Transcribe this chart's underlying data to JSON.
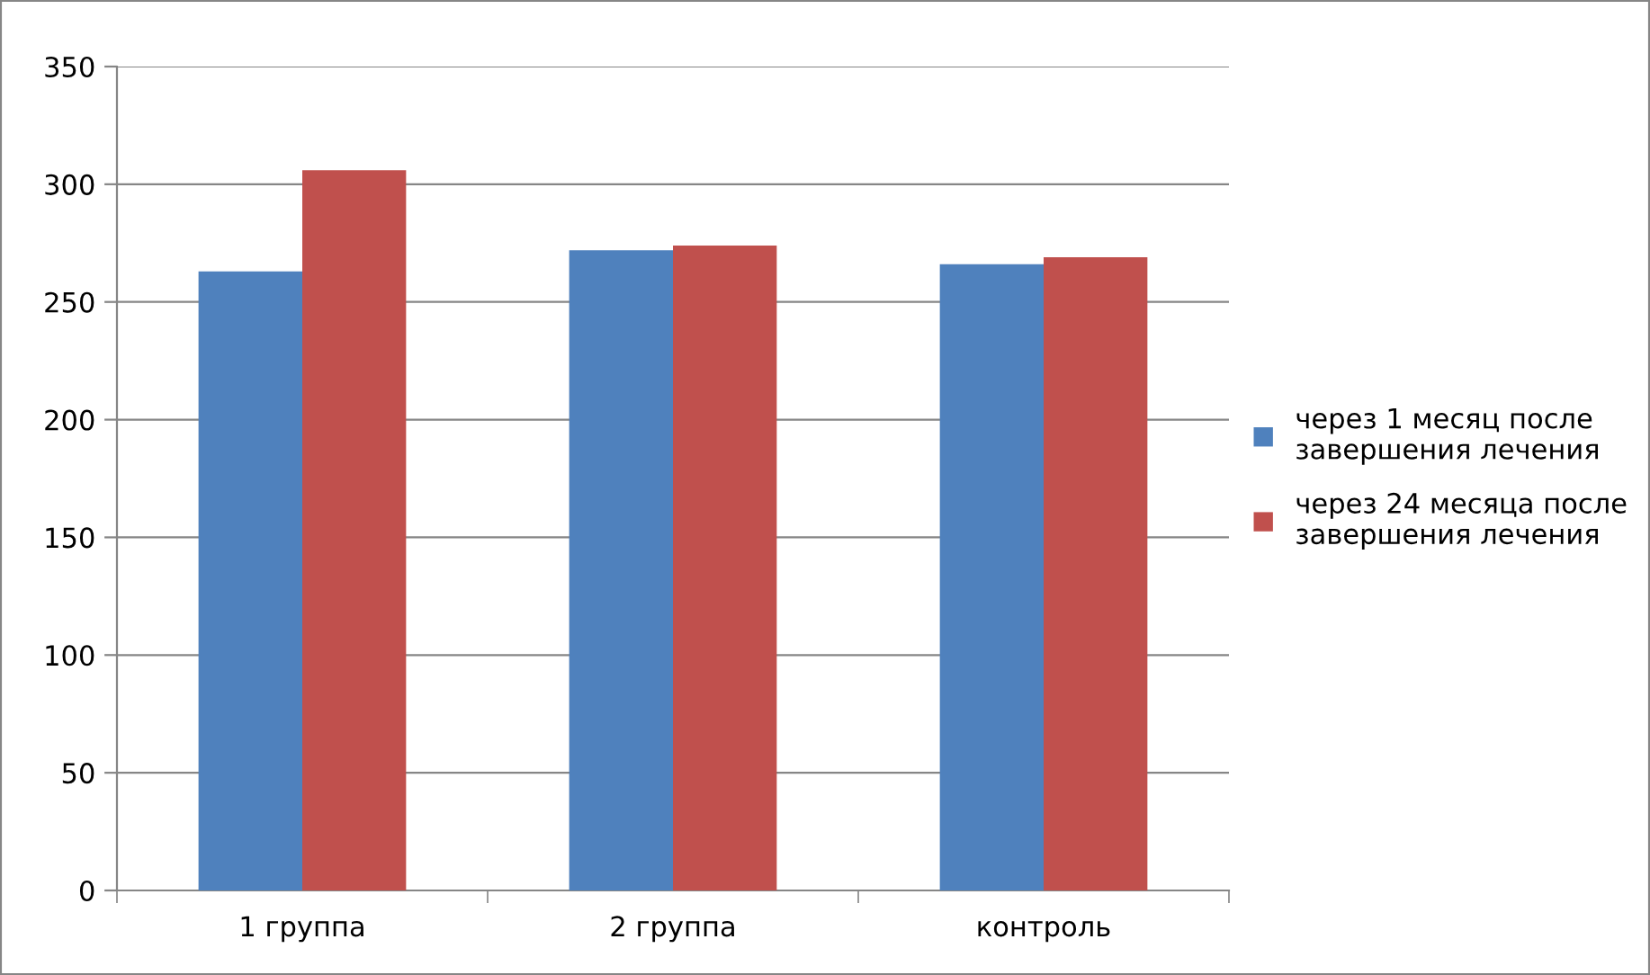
{
  "chart_data": {
    "type": "bar",
    "categories": [
      "1 группа",
      "2 группа",
      "контроль"
    ],
    "series": [
      {
        "name": "через 1 месяц после\nзавершения лечения",
        "color": "#4f81bd",
        "values": [
          263,
          272,
          266
        ]
      },
      {
        "name": "через 24 месяца после\nзавершения лечения",
        "color": "#c0504d",
        "values": [
          306,
          274,
          269
        ]
      }
    ],
    "ylim": [
      0,
      350
    ],
    "yticks": [
      0,
      50,
      100,
      150,
      200,
      250,
      300,
      350
    ],
    "grid": "y",
    "legend": "right"
  }
}
